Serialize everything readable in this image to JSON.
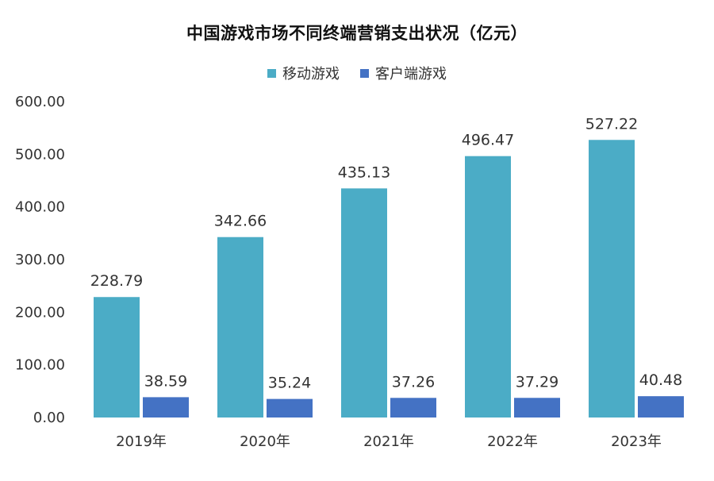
{
  "chart_data": {
    "type": "bar",
    "title": "中国游戏市场不同终端营销支出状况（亿元）",
    "categories": [
      "2019年",
      "2020年",
      "2021年",
      "2022年",
      "2023年"
    ],
    "series": [
      {
        "name": "移动游戏",
        "values": [
          228.79,
          342.66,
          435.13,
          496.47,
          527.22
        ],
        "color": "#4bacc6"
      },
      {
        "name": "客户端游戏",
        "values": [
          38.59,
          35.24,
          37.26,
          37.29,
          40.48
        ],
        "color": "#4472c4"
      }
    ],
    "value_labels": [
      [
        "228.79",
        "342.66",
        "435.13",
        "496.47",
        "527.22"
      ],
      [
        "38.59",
        "35.24",
        "37.26",
        "37.29",
        "40.48"
      ]
    ],
    "yticks": [
      "0.00",
      "100.00",
      "200.00",
      "300.00",
      "400.00",
      "500.00",
      "600.00"
    ],
    "ylim": [
      0,
      600
    ],
    "grid": false,
    "legend_position": "top"
  }
}
